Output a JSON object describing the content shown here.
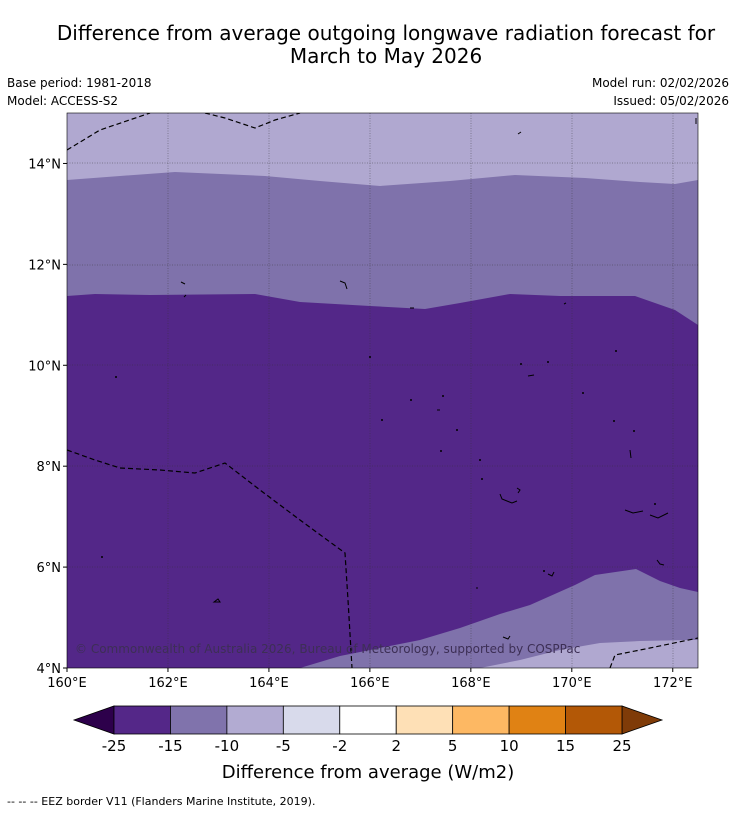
{
  "title_line1": "Difference from average outgoing longwave radiation forecast for",
  "title_line2": "March to May 2026",
  "meta": {
    "base_period": "Base period: 1981-2018",
    "model": "Model: ACCESS-S2",
    "model_run": "Model run: 02/02/2026",
    "issued": "Issued: 05/02/2026"
  },
  "map": {
    "lon_range": [
      160,
      172.5
    ],
    "lat_range": [
      4,
      15
    ],
    "lon_ticks": [
      160,
      162,
      164,
      166,
      168,
      170,
      172
    ],
    "lat_ticks": [
      4,
      6,
      8,
      10,
      12,
      14
    ],
    "lon_tick_labels": [
      "160°E",
      "162°E",
      "164°E",
      "166°E",
      "168°E",
      "170°E",
      "172°E"
    ],
    "lat_tick_labels": [
      "4°N",
      "6°N",
      "8°N",
      "10°N",
      "12°N",
      "14°N"
    ],
    "copyright": "© Commonwealth of Australia 2026, Bureau of Meteorology, supported by COSPPac"
  },
  "colorbar": {
    "label": "Difference from average (W/m2)",
    "tick_labels": [
      "-25",
      "-15",
      "-10",
      "-5",
      "-2",
      "2",
      "5",
      "10",
      "15",
      "25"
    ],
    "under_color": "#2d004b",
    "over_color": "#7f3b08",
    "colors": [
      "#542788",
      "#8073ac",
      "#b2abd2",
      "#d8daeb",
      "#ffffff",
      "#fee0b6",
      "#fdb863",
      "#e08214",
      "#b35806"
    ]
  },
  "legend_note": "--  --  -- EEZ border V11 (Flanders Marine Institute, 2019)."
}
